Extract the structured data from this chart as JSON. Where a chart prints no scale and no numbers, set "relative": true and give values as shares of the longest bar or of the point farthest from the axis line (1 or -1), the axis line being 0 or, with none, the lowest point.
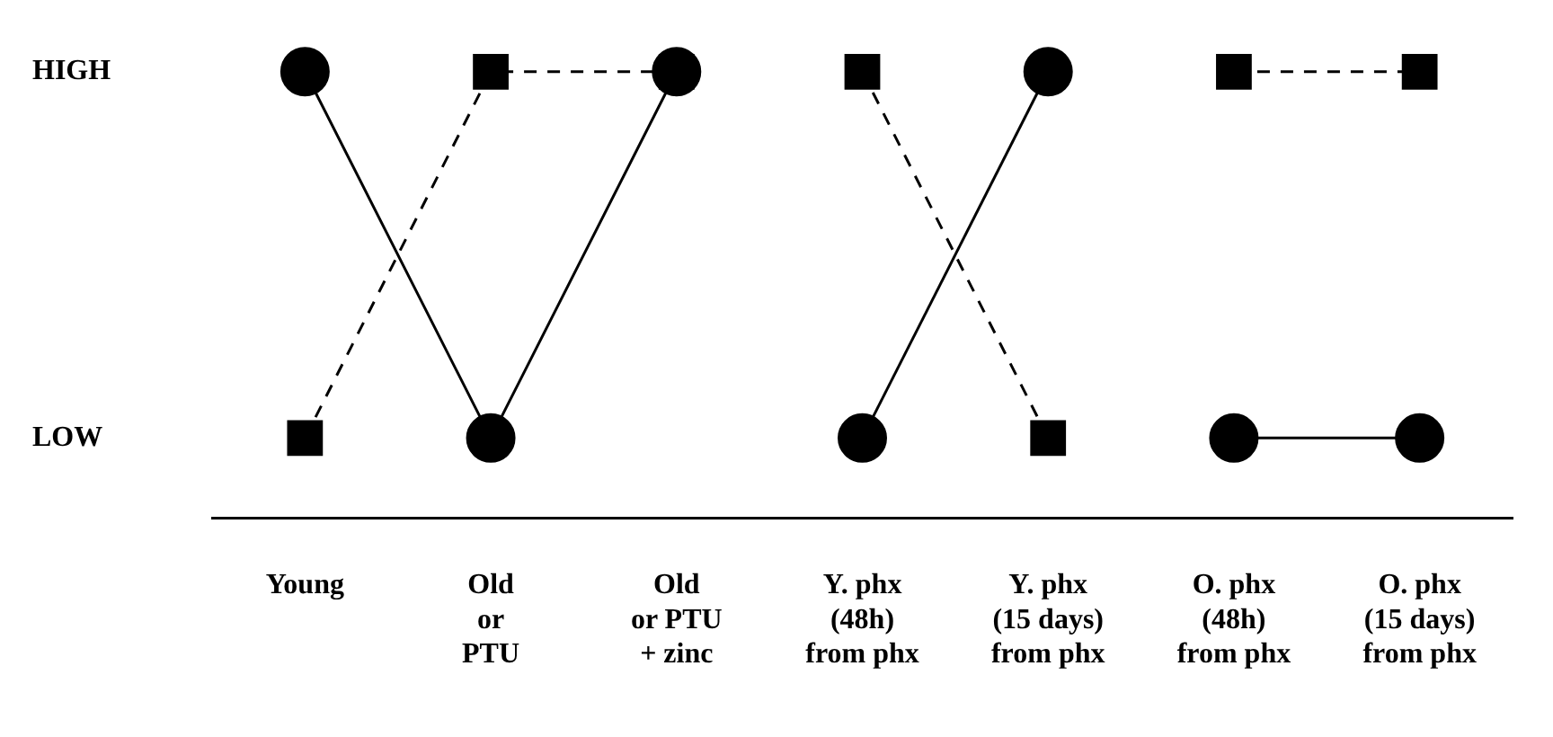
{
  "chart_data": {
    "type": "line",
    "relative": true,
    "categories": [
      "Young",
      "Old\nor\nPTU",
      "Old\nor PTU\n+ zinc",
      "Y. phx\n(48h)\nfrom phx",
      "Y. phx\n(15 days)\nfrom phx",
      "O. phx\n(48h)\nfrom phx",
      "O. phx\n(15 days)\nfrom phx"
    ],
    "annotations": [
      "HIGH",
      "LOW"
    ],
    "grid": false,
    "legend": false,
    "series": [
      {
        "color": "#000000",
        "marker": "circle",
        "line_style": "solid",
        "values": [
          1,
          0.18,
          1,
          null,
          null,
          null,
          null
        ]
      },
      {
        "color": "#000000",
        "marker": "circle",
        "line_style": "solid",
        "values": [
          null,
          null,
          null,
          0.18,
          1,
          null,
          null
        ]
      },
      {
        "color": "#000000",
        "marker": "circle",
        "line_style": "solid",
        "values": [
          null,
          null,
          null,
          null,
          null,
          0.18,
          0.18
        ]
      },
      {
        "color": "#000000",
        "marker": "square",
        "line_style": "dashed",
        "values": [
          0.18,
          1,
          1,
          null,
          null,
          null,
          null
        ]
      },
      {
        "color": "#000000",
        "marker": "square",
        "line_style": "dashed",
        "values": [
          null,
          null,
          null,
          1,
          0.18,
          null,
          null
        ]
      },
      {
        "color": "#000000",
        "marker": "square",
        "line_style": "dashed",
        "values": [
          null,
          null,
          null,
          null,
          null,
          1,
          1
        ]
      }
    ]
  }
}
